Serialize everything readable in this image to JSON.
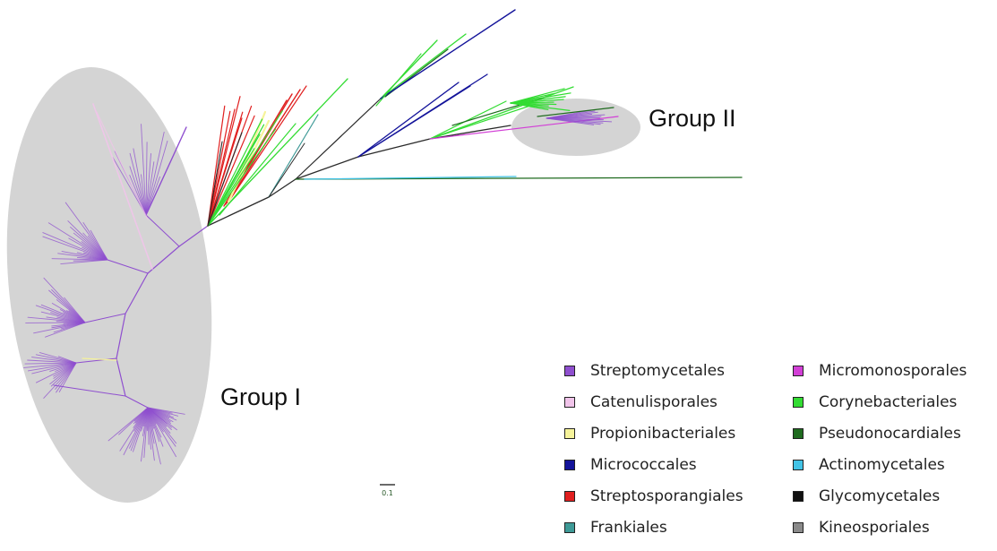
{
  "group_labels": [
    "Group I",
    "Group II"
  ],
  "scale_bar_label": "0.1",
  "colors": {
    "group_fill": "#d4d4d4",
    "backbone": "#2a2a2a"
  },
  "legend": [
    {
      "label": "Streptomycetales",
      "color": "#8f4fcf"
    },
    {
      "label": "Micromonosporales",
      "color": "#d23fd6"
    },
    {
      "label": "Catenulisporales",
      "color": "#f1c4ea"
    },
    {
      "label": "Corynebacteriales",
      "color": "#33dc33"
    },
    {
      "label": "Propionibacteriales",
      "color": "#f6f39a"
    },
    {
      "label": "Pseudonocardiales",
      "color": "#1f6b1f"
    },
    {
      "label": "Micrococcales",
      "color": "#13139a"
    },
    {
      "label": "Actinomycetales",
      "color": "#42c3e6"
    },
    {
      "label": "Streptosporangiales",
      "color": "#e01f1f"
    },
    {
      "label": "Glycomycetales",
      "color": "#111111"
    },
    {
      "label": "Frankiales",
      "color": "#3e9a97"
    },
    {
      "label": "Kineosporiales",
      "color": "#8a8a8a"
    }
  ]
}
